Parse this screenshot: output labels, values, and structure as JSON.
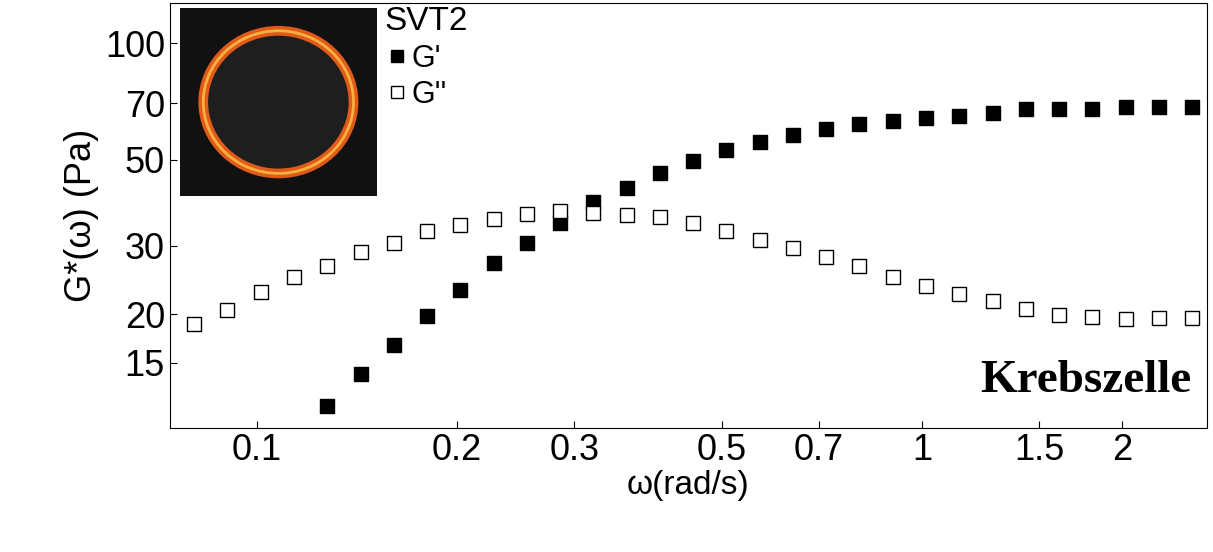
{
  "chart_data": {
    "type": "scatter",
    "xlabel": "ω(rad/s)",
    "ylabel": "G*(ω) (Pa)",
    "legend_title": "SVT2",
    "annotation": "Krebszelle",
    "log": true,
    "grid": false,
    "legend": "upper left",
    "x": [
      0.0805,
      0.0903,
      0.1013,
      0.1137,
      0.1276,
      0.1432,
      0.1606,
      0.1802,
      0.2022,
      0.2269,
      0.2546,
      0.2857,
      0.3205,
      0.3596,
      0.4035,
      0.4528,
      0.508,
      0.57,
      0.64,
      0.718,
      0.805,
      0.904,
      1.014,
      1.137,
      1.276,
      1.432,
      1.607,
      1.803,
      2.023,
      2.27,
      2.547
    ],
    "series": [
      {
        "name": "G'",
        "color": "#000000",
        "marker": "square_filled",
        "values": [
          null,
          null,
          null,
          null,
          11.6,
          14.0,
          16.7,
          19.8,
          23.1,
          27.1,
          30.5,
          34.4,
          38.9,
          42.3,
          46.2,
          49.7,
          53.0,
          55.6,
          57.9,
          60.0,
          61.8,
          62.9,
          64.1,
          64.9,
          66.0,
          67.6,
          67.6,
          67.6,
          68.4,
          68.4,
          68.4
        ]
      },
      {
        "name": "G''",
        "color": "#000000",
        "marker": "square_open",
        "values": [
          18.9,
          20.5,
          22.8,
          24.9,
          26.6,
          28.9,
          30.5,
          32.8,
          34.0,
          35.2,
          36.2,
          36.9,
          36.5,
          36.0,
          35.6,
          34.4,
          32.8,
          31.0,
          29.6,
          28.1,
          26.6,
          24.9,
          23.6,
          22.5,
          21.6,
          20.6,
          19.9,
          19.7,
          19.4,
          19.6,
          19.6
        ]
      }
    ],
    "xlim": [
      0.074,
      2.68
    ],
    "ylim": [
      10.2,
      127
    ],
    "xticks": [
      0.1,
      0.2,
      0.3,
      0.5,
      0.7,
      1,
      1.5,
      2
    ],
    "yticks": [
      15,
      20,
      30,
      50,
      70,
      100
    ]
  }
}
